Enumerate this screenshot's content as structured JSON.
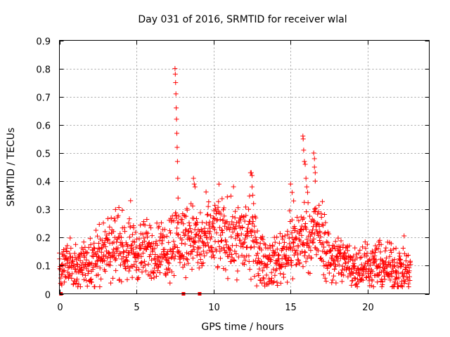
{
  "chart_data": {
    "type": "scatter",
    "title": "Day 031 of 2016, SRMTID for receiver wlal",
    "xlabel": "GPS time / hours",
    "ylabel": "SRMTID / TECUs",
    "xlim": [
      0,
      24
    ],
    "ylim": [
      0,
      0.9
    ],
    "xticks": [
      0,
      5,
      10,
      15,
      20
    ],
    "xtick_labels": [
      "0",
      "5",
      "10",
      "15",
      "20"
    ],
    "yticks": [
      0,
      0.1,
      0.2,
      0.3,
      0.4,
      0.5,
      0.6,
      0.7,
      0.8,
      0.9
    ],
    "ytick_labels": [
      "0",
      "0.1",
      "0.2",
      "0.3",
      "0.4",
      "0.5",
      "0.6",
      "0.7",
      "0.8",
      "0.9"
    ],
    "grid": true,
    "marker": "+",
    "series_color": "#ff0000",
    "trend": [
      {
        "x": 0.0,
        "y": 0.11
      },
      {
        "x": 0.5,
        "y": 0.09
      },
      {
        "x": 1.0,
        "y": 0.1
      },
      {
        "x": 1.5,
        "y": 0.11
      },
      {
        "x": 2.0,
        "y": 0.1
      },
      {
        "x": 2.5,
        "y": 0.12
      },
      {
        "x": 3.0,
        "y": 0.15
      },
      {
        "x": 3.5,
        "y": 0.18
      },
      {
        "x": 4.0,
        "y": 0.17
      },
      {
        "x": 4.5,
        "y": 0.16
      },
      {
        "x": 5.0,
        "y": 0.15
      },
      {
        "x": 5.5,
        "y": 0.15
      },
      {
        "x": 6.0,
        "y": 0.16
      },
      {
        "x": 6.5,
        "y": 0.15
      },
      {
        "x": 7.0,
        "y": 0.16
      },
      {
        "x": 7.5,
        "y": 0.2
      },
      {
        "x": 8.0,
        "y": 0.19
      },
      {
        "x": 8.5,
        "y": 0.22
      },
      {
        "x": 9.0,
        "y": 0.17
      },
      {
        "x": 9.5,
        "y": 0.19
      },
      {
        "x": 10.0,
        "y": 0.21
      },
      {
        "x": 10.5,
        "y": 0.22
      },
      {
        "x": 11.0,
        "y": 0.2
      },
      {
        "x": 11.5,
        "y": 0.21
      },
      {
        "x": 12.0,
        "y": 0.19
      },
      {
        "x": 12.5,
        "y": 0.2
      },
      {
        "x": 13.0,
        "y": 0.12
      },
      {
        "x": 13.5,
        "y": 0.11
      },
      {
        "x": 14.0,
        "y": 0.11
      },
      {
        "x": 14.5,
        "y": 0.14
      },
      {
        "x": 15.0,
        "y": 0.17
      },
      {
        "x": 15.5,
        "y": 0.18
      },
      {
        "x": 16.0,
        "y": 0.21
      },
      {
        "x": 16.5,
        "y": 0.22
      },
      {
        "x": 17.0,
        "y": 0.2
      },
      {
        "x": 17.5,
        "y": 0.13
      },
      {
        "x": 18.0,
        "y": 0.12
      },
      {
        "x": 18.5,
        "y": 0.12
      },
      {
        "x": 19.0,
        "y": 0.1
      },
      {
        "x": 19.5,
        "y": 0.1
      },
      {
        "x": 20.0,
        "y": 0.1
      },
      {
        "x": 20.5,
        "y": 0.1
      },
      {
        "x": 21.0,
        "y": 0.1
      },
      {
        "x": 21.5,
        "y": 0.09
      },
      {
        "x": 22.0,
        "y": 0.09
      },
      {
        "x": 22.5,
        "y": 0.08
      },
      {
        "x": 22.8,
        "y": 0.07
      }
    ],
    "spikes": [
      {
        "x": 7.5,
        "y": 0.8
      },
      {
        "x": 7.52,
        "y": 0.78
      },
      {
        "x": 7.54,
        "y": 0.75
      },
      {
        "x": 7.56,
        "y": 0.71
      },
      {
        "x": 7.58,
        "y": 0.66
      },
      {
        "x": 7.6,
        "y": 0.62
      },
      {
        "x": 7.62,
        "y": 0.57
      },
      {
        "x": 7.64,
        "y": 0.52
      },
      {
        "x": 7.66,
        "y": 0.47
      },
      {
        "x": 7.68,
        "y": 0.41
      },
      {
        "x": 7.7,
        "y": 0.34
      },
      {
        "x": 8.7,
        "y": 0.41
      },
      {
        "x": 8.75,
        "y": 0.39
      },
      {
        "x": 8.8,
        "y": 0.38
      },
      {
        "x": 12.4,
        "y": 0.43
      },
      {
        "x": 12.45,
        "y": 0.43
      },
      {
        "x": 12.5,
        "y": 0.42
      },
      {
        "x": 12.5,
        "y": 0.38
      },
      {
        "x": 12.55,
        "y": 0.35
      },
      {
        "x": 15.8,
        "y": 0.56
      },
      {
        "x": 15.82,
        "y": 0.55
      },
      {
        "x": 15.85,
        "y": 0.51
      },
      {
        "x": 15.9,
        "y": 0.47
      },
      {
        "x": 15.95,
        "y": 0.46
      },
      {
        "x": 16.0,
        "y": 0.41
      },
      {
        "x": 16.05,
        "y": 0.38
      },
      {
        "x": 16.5,
        "y": 0.5
      },
      {
        "x": 16.55,
        "y": 0.48
      },
      {
        "x": 16.55,
        "y": 0.45
      },
      {
        "x": 16.6,
        "y": 0.43
      },
      {
        "x": 16.6,
        "y": 0.4
      },
      {
        "x": 15.0,
        "y": 0.39
      },
      {
        "x": 15.1,
        "y": 0.36
      },
      {
        "x": 15.2,
        "y": 0.33
      }
    ],
    "zero_markers": [
      {
        "x": 0.1,
        "y": 0
      },
      {
        "x": 8.05,
        "y": 0
      },
      {
        "x": 9.1,
        "y": 0
      }
    ]
  }
}
